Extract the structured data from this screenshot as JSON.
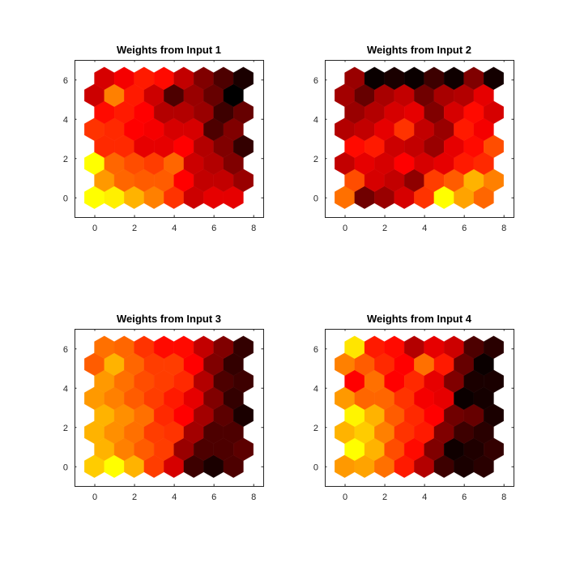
{
  "chart_data": [
    {
      "type": "heatmap",
      "subtype": "som-hexagonal-weight-plane",
      "title": "Weights from Input 1",
      "xlim": [
        -1,
        8.5
      ],
      "ylim": [
        -1,
        7
      ],
      "xticks": [
        "0",
        "2",
        "4",
        "6",
        "8"
      ],
      "yticks": [
        "0",
        "2",
        "4",
        "6"
      ],
      "colormap": "hot (black-red-yellow), normalized 0-1",
      "grid_rows_bottom_to_top": [
        [
          1.0,
          0.97,
          0.85,
          0.75,
          0.6,
          0.4,
          0.45,
          0.45
        ],
        [
          0.8,
          0.7,
          0.68,
          0.68,
          0.5,
          0.38,
          0.38,
          0.3
        ],
        [
          1.0,
          0.7,
          0.65,
          0.62,
          0.7,
          0.4,
          0.35,
          0.25
        ],
        [
          0.58,
          0.58,
          0.45,
          0.45,
          0.5,
          0.35,
          0.25,
          0.1
        ],
        [
          0.6,
          0.58,
          0.5,
          0.48,
          0.42,
          0.42,
          0.15,
          0.25
        ],
        [
          0.52,
          0.55,
          0.5,
          0.35,
          0.35,
          0.3,
          0.12,
          0.2
        ],
        [
          0.4,
          0.75,
          0.55,
          0.4,
          0.15,
          0.3,
          0.2,
          0.0
        ],
        [
          0.42,
          0.48,
          0.55,
          0.52,
          0.38,
          0.25,
          0.15,
          0.05
        ]
      ]
    },
    {
      "type": "heatmap",
      "subtype": "som-hexagonal-weight-plane",
      "title": "Weights from Input 2",
      "xlim": [
        -1,
        8.5
      ],
      "ylim": [
        -1,
        7
      ],
      "xticks": [
        "0",
        "2",
        "4",
        "6",
        "8"
      ],
      "yticks": [
        "0",
        "2",
        "4",
        "6"
      ],
      "colormap": "hot (black-red-yellow), normalized 0-1",
      "grid_rows_bottom_to_top": [
        [
          0.72,
          0.22,
          0.3,
          0.42,
          0.6,
          1.0,
          0.82,
          0.7
        ],
        [
          0.65,
          0.42,
          0.38,
          0.28,
          0.62,
          0.68,
          0.85,
          0.75
        ],
        [
          0.38,
          0.45,
          0.42,
          0.5,
          0.42,
          0.45,
          0.55,
          0.58
        ],
        [
          0.52,
          0.55,
          0.4,
          0.38,
          0.3,
          0.45,
          0.52,
          0.65
        ],
        [
          0.35,
          0.38,
          0.45,
          0.6,
          0.38,
          0.3,
          0.55,
          0.48
        ],
        [
          0.3,
          0.35,
          0.42,
          0.45,
          0.25,
          0.42,
          0.52,
          0.42
        ],
        [
          0.32,
          0.2,
          0.33,
          0.38,
          0.22,
          0.33,
          0.35,
          0.45
        ],
        [
          0.3,
          0.02,
          0.05,
          0.02,
          0.12,
          0.03,
          0.25,
          0.04
        ]
      ]
    },
    {
      "type": "heatmap",
      "subtype": "som-hexagonal-weight-plane",
      "title": "Weights from Input 3",
      "xlim": [
        -1,
        8.5
      ],
      "ylim": [
        -1,
        7
      ],
      "xticks": [
        "0",
        "2",
        "4",
        "6",
        "8"
      ],
      "yticks": [
        "0",
        "2",
        "4",
        "6"
      ],
      "colormap": "hot (black-red-yellow), normalized 0-1",
      "grid_rows_bottom_to_top": [
        [
          0.9,
          1.0,
          0.85,
          0.62,
          0.42,
          0.12,
          0.05,
          0.15
        ],
        [
          0.85,
          0.75,
          0.68,
          0.62,
          0.3,
          0.15,
          0.15,
          0.18
        ],
        [
          0.85,
          0.78,
          0.72,
          0.62,
          0.6,
          0.32,
          0.15,
          0.15
        ],
        [
          0.85,
          0.78,
          0.72,
          0.58,
          0.5,
          0.32,
          0.18,
          0.05
        ],
        [
          0.8,
          0.75,
          0.68,
          0.62,
          0.55,
          0.45,
          0.25,
          0.1
        ],
        [
          0.8,
          0.72,
          0.65,
          0.62,
          0.58,
          0.35,
          0.15,
          0.12
        ],
        [
          0.68,
          0.85,
          0.7,
          0.62,
          0.62,
          0.5,
          0.25,
          0.1
        ],
        [
          0.72,
          0.7,
          0.6,
          0.52,
          0.52,
          0.38,
          0.25,
          0.1
        ]
      ]
    },
    {
      "type": "heatmap",
      "subtype": "som-hexagonal-weight-plane",
      "title": "Weights from Input 4",
      "xlim": [
        -1,
        8.5
      ],
      "ylim": [
        -1,
        7
      ],
      "xticks": [
        "0",
        "2",
        "4",
        "6",
        "8"
      ],
      "yticks": [
        "0",
        "2",
        "4",
        "6"
      ],
      "colormap": "hot (black-red-yellow), normalized 0-1",
      "grid_rows_bottom_to_top": [
        [
          0.8,
          0.82,
          0.72,
          0.55,
          0.35,
          0.12,
          0.05,
          0.08
        ],
        [
          1.0,
          0.85,
          0.65,
          0.52,
          0.25,
          0.03,
          0.06,
          0.1
        ],
        [
          0.85,
          0.9,
          0.75,
          0.6,
          0.55,
          0.25,
          0.12,
          0.08
        ],
        [
          0.98,
          0.85,
          0.68,
          0.58,
          0.5,
          0.22,
          0.2,
          0.05
        ],
        [
          0.8,
          0.7,
          0.7,
          0.6,
          0.48,
          0.45,
          0.02,
          0.04
        ],
        [
          0.5,
          0.72,
          0.5,
          0.58,
          0.45,
          0.25,
          0.05,
          0.05
        ],
        [
          0.75,
          0.68,
          0.58,
          0.5,
          0.72,
          0.55,
          0.2,
          0.02
        ],
        [
          0.95,
          0.55,
          0.52,
          0.35,
          0.45,
          0.4,
          0.15,
          0.08
        ]
      ]
    }
  ]
}
